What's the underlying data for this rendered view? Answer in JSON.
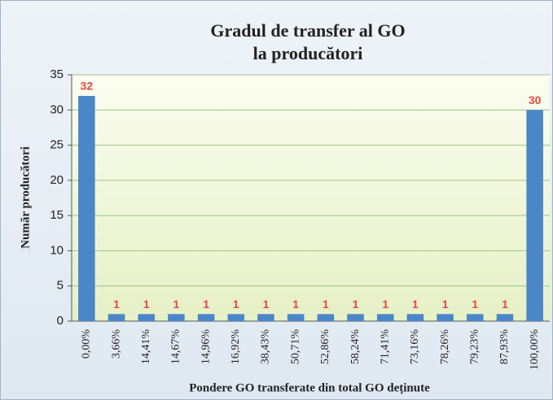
{
  "chart_data": {
    "type": "bar",
    "title": [
      "Gradul de transfer al GO",
      "la producători"
    ],
    "ylabel": "Număr producători",
    "xlabel": "Pondere GO transferate din total GO deținute",
    "categories": [
      "0,00%",
      "3,66%",
      "14,41%",
      "14,67%",
      "14,96%",
      "16,92%",
      "38,43%",
      "50,71%",
      "52,86%",
      "58,24%",
      "71,41%",
      "73,16%",
      "78,26%",
      "79,23%",
      "87,93%",
      "100,00%"
    ],
    "values": [
      32,
      1,
      1,
      1,
      1,
      1,
      1,
      1,
      1,
      1,
      1,
      1,
      1,
      1,
      1,
      30
    ],
    "color": "#4a86c8",
    "label_color": "#e8473b",
    "ylim": [
      0,
      35
    ],
    "yticks": [
      0,
      5,
      10,
      15,
      20,
      25,
      30,
      35
    ],
    "grid": true
  }
}
